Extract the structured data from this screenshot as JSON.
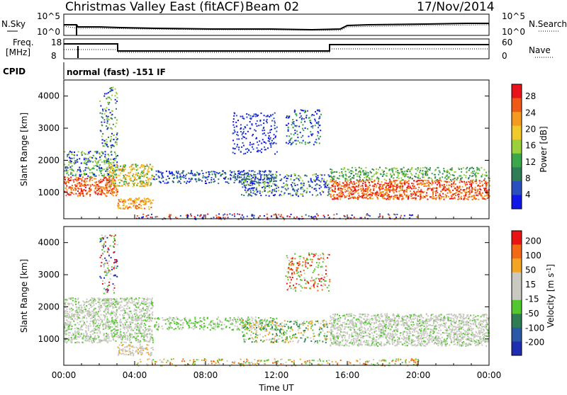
{
  "header": {
    "title": "Christmas Valley East (fitACF)",
    "beam": "Beam 02",
    "date": "17/Nov/2014"
  },
  "top_panels": {
    "nsky_label": "N.Sky",
    "nsearch_label": "N.Search",
    "freq_label_1": "Freq.",
    "freq_label_2": "[MHz]",
    "nave_label": "Nave",
    "cpid_label": "CPID",
    "cpid_text": "normal (fast) -151 IF",
    "left_ticks_noise": [
      "10^5",
      "10^0"
    ],
    "right_ticks_noise": [
      "10^5",
      "10^0"
    ],
    "left_ticks_freq": [
      "18",
      "8"
    ],
    "right_ticks_freq": [
      "60",
      "0"
    ]
  },
  "colors": {
    "power_scale": [
      "#1018e8",
      "#2a4fbf",
      "#2e7d55",
      "#3aa84a",
      "#9ad03a",
      "#f2c92a",
      "#f39a1f",
      "#f05a18",
      "#e8141a"
    ],
    "velocity_scale": [
      "#1f2db0",
      "#2a5aa6",
      "#2e7d55",
      "#52c82e",
      "#c9c9c1",
      "#c9c9c1",
      "#f3a420",
      "#f26a15",
      "#e81414"
    ],
    "gray_scatter": "#c9c9c1"
  },
  "chart_data": [
    {
      "type": "heatmap",
      "name": "power-panel",
      "ylabel": "Slant Range [km]",
      "colorbar_label": "Power [dB]",
      "colorbar_ticks": [
        "28",
        "24",
        "20",
        "16",
        "12",
        "8",
        "4"
      ],
      "yticks": [
        "4000",
        "3000",
        "2000",
        "1000"
      ],
      "xticks": [
        "00:00",
        "04:00",
        "08:00",
        "12:00",
        "16:00",
        "20:00",
        "00:00"
      ],
      "ylim": [
        180,
        4500
      ],
      "xlim_hours": [
        0,
        24
      ]
    },
    {
      "type": "heatmap",
      "name": "velocity-panel",
      "ylabel": "Slant Range [km]",
      "colorbar_label": "Velocity [m s^-1]",
      "colorbar_ticks": [
        "200",
        "100",
        "50",
        "15",
        "-15",
        "-50",
        "-100",
        "-200"
      ],
      "yticks": [
        "4000",
        "3000",
        "2000",
        "1000"
      ],
      "xticks": [
        "00:00",
        "04:00",
        "08:00",
        "12:00",
        "16:00",
        "20:00",
        "00:00"
      ],
      "xlabel": "Time UT",
      "ylim": [
        180,
        4500
      ],
      "xlim_hours": [
        0,
        24
      ]
    }
  ]
}
